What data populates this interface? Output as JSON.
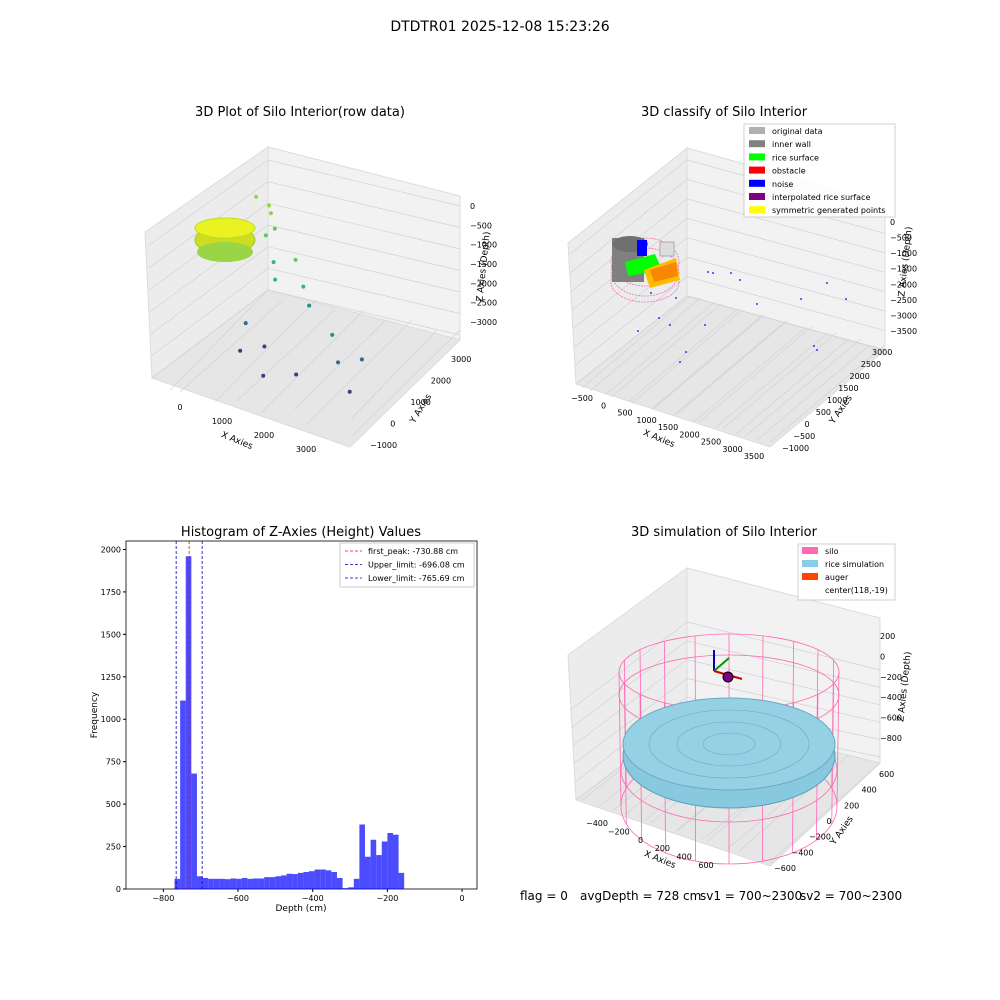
{
  "suptitle": "DTDTR01 2025-12-08 15:23:26",
  "footer": {
    "flag": "flag = 0",
    "avg": "avgDepth = 728 cm",
    "sv1": "sv1 = 700~2300",
    "sv2": "sv2 = 700~2300"
  },
  "panels": {
    "raw": {
      "title": "3D Plot of Silo Interior(row data)",
      "xlabel": "X Axies",
      "ylabel": "Y Axies",
      "zlabel": "Z Axies (Depth)",
      "xticks": [
        "0",
        "1000",
        "2000",
        "3000"
      ],
      "yticks": [
        "−1000",
        "0",
        "1000",
        "2000",
        "3000"
      ],
      "zticks": [
        "0",
        "−500",
        "−1000",
        "−1500",
        "−2000",
        "−2500",
        "−3000"
      ]
    },
    "classify": {
      "title": "3D classify of Silo Interior",
      "xlabel": "X Axies",
      "ylabel": "Y Axies",
      "zlabel": "Z Axies (Depth)",
      "xticks": [
        "−500",
        "0",
        "500",
        "1000",
        "1500",
        "2000",
        "2500",
        "3000",
        "3500"
      ],
      "yticks": [
        "−1000",
        "−500",
        "0",
        "500",
        "1000",
        "1500",
        "2000",
        "2500",
        "3000"
      ],
      "zticks": [
        "0",
        "−500",
        "−1000",
        "−1500",
        "−2000",
        "−2500",
        "−3000",
        "−3500"
      ],
      "legend": [
        {
          "label": "original data",
          "color": "#b0b0b0"
        },
        {
          "label": "inner wall",
          "color": "#808080"
        },
        {
          "label": "rice surface",
          "color": "#00ff00"
        },
        {
          "label": "obstacle",
          "color": "#ff0000"
        },
        {
          "label": "noise",
          "color": "#0000ff"
        },
        {
          "label": "interpolated rice surface",
          "color": "#800080"
        },
        {
          "label": "symmetric generated points",
          "color": "#ffff00"
        }
      ]
    },
    "simulation": {
      "title": "3D simulation of Silo Interior",
      "xlabel": "X Axies",
      "ylabel": "Y Axies",
      "zlabel": "Z Axies (Depth)",
      "xticks": [
        "−400",
        "−200",
        "0",
        "200",
        "400",
        "600"
      ],
      "yticks": [
        "−600",
        "−400",
        "−200",
        "0",
        "200",
        "400",
        "600"
      ],
      "zticks": [
        "200",
        "0",
        "−200",
        "−400",
        "−600",
        "−800"
      ],
      "legend": [
        {
          "label": "silo",
          "color": "#ff69b4"
        },
        {
          "label": "rice simulation",
          "color": "#87ceeb"
        },
        {
          "label": "auger",
          "color": "#ff4500"
        },
        {
          "label": "center(118,-19)",
          "color": ""
        }
      ]
    }
  },
  "chart_data": [
    {
      "type": "scatter",
      "title": "3D Plot of Silo Interior(row data)",
      "xlabel": "X Axies",
      "ylabel": "Y Axies",
      "zlabel": "Z Axies (Depth)",
      "xlim": [
        -700,
        3900
      ],
      "ylim": [
        -1200,
        3200
      ],
      "zlim": [
        -3300,
        0
      ],
      "points": [
        [
          -200,
          2300,
          -500
        ],
        [
          100,
          2300,
          -600
        ],
        [
          200,
          2200,
          -700
        ],
        [
          400,
          2000,
          -900
        ],
        [
          300,
          1800,
          -1000
        ],
        [
          700,
          1400,
          -1300
        ],
        [
          900,
          1100,
          -1500
        ],
        [
          1100,
          1600,
          -1200
        ],
        [
          1500,
          1200,
          -1500
        ],
        [
          1800,
          900,
          -1700
        ],
        [
          2500,
          600,
          -2000
        ],
        [
          3300,
          400,
          -2200
        ],
        [
          600,
          400,
          -2300
        ],
        [
          800,
          -200,
          -2600
        ],
        [
          1200,
          100,
          -2500
        ],
        [
          1500,
          -500,
          -2800
        ],
        [
          2100,
          -200,
          -2700
        ],
        [
          2800,
          300,
          -2400
        ],
        [
          3400,
          -300,
          -2600
        ]
      ],
      "zticks": [
        0,
        -500,
        -1000,
        -1500,
        -2000,
        -2500,
        -3000
      ]
    },
    {
      "type": "scatter",
      "title": "3D classify of Silo Interior",
      "xlabel": "X Axies",
      "ylabel": "Y Axies",
      "zlabel": "Z Axies (Depth)",
      "xlim": [
        -600,
        3600
      ],
      "ylim": [
        -1100,
        3100
      ],
      "zlim": [
        -3700,
        0
      ],
      "series": [
        {
          "name": "original data",
          "color": "#b0b0b0"
        },
        {
          "name": "inner wall",
          "color": "#808080"
        },
        {
          "name": "rice surface",
          "color": "#00ff00"
        },
        {
          "name": "obstacle",
          "color": "#ff0000"
        },
        {
          "name": "noise",
          "color": "#0000ff"
        },
        {
          "name": "interpolated rice surface",
          "color": "#800080"
        },
        {
          "name": "symmetric generated points",
          "color": "#ffff00"
        }
      ]
    },
    {
      "type": "bar",
      "title": "Histogram of Z-Axies (Height) Values",
      "xlabel": "Depth (cm)",
      "ylabel": "Frequency",
      "xlim": [
        -900,
        40
      ],
      "ylim": [
        0,
        2050
      ],
      "xticks": [
        -800,
        -600,
        -400,
        -200,
        0
      ],
      "yticks": [
        0,
        250,
        500,
        750,
        1000,
        1250,
        1500,
        1750,
        2000
      ],
      "bin_width": 15,
      "bin_start": -770,
      "values": [
        60,
        1110,
        1960,
        680,
        75,
        65,
        60,
        60,
        60,
        58,
        62,
        60,
        65,
        60,
        62,
        62,
        70,
        70,
        75,
        80,
        90,
        88,
        95,
        100,
        105,
        115,
        115,
        110,
        100,
        65,
        5,
        10,
        60,
        380,
        190,
        290,
        200,
        280,
        330,
        320,
        95
      ],
      "color": "#0000ff",
      "vlines": [
        {
          "label": "first_peak: -730.88 cm",
          "x": -730.88,
          "color": "#ff0000"
        },
        {
          "label": "Upper_limit: -696.08 cm",
          "x": -696.08,
          "color": "#0000aa"
        },
        {
          "label": "Lower_limit: -765.69 cm",
          "x": -765.69,
          "color": "#0000aa"
        }
      ],
      "legend": "top-right"
    },
    {
      "type": "3d-surface",
      "title": "3D simulation of Silo Interior",
      "xlabel": "X Axies",
      "ylabel": "Y Axies",
      "zlabel": "Z Axies (Depth)",
      "xlim": [
        -520,
        760
      ],
      "ylim": [
        -700,
        700
      ],
      "zlim": [
        -900,
        300
      ],
      "center": [
        118,
        -19
      ]
    }
  ]
}
